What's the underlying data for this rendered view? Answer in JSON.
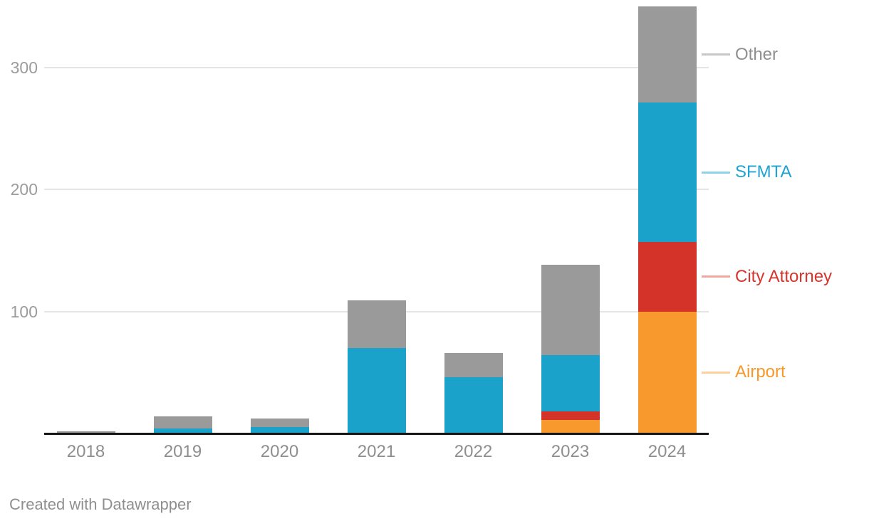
{
  "chart_data": {
    "type": "bar",
    "stacked": true,
    "title": "",
    "xlabel": "",
    "ylabel": "",
    "categories": [
      "2018",
      "2019",
      "2020",
      "2021",
      "2022",
      "2023",
      "2024"
    ],
    "series": [
      {
        "name": "Airport",
        "color": "#f8992d",
        "values": [
          0,
          0,
          0,
          0,
          0,
          11,
          100
        ]
      },
      {
        "name": "City Attorney",
        "color": "#d4332a",
        "values": [
          0,
          0,
          0,
          0,
          0,
          7,
          57
        ]
      },
      {
        "name": "SFMTA",
        "color": "#1aa2cb",
        "values": [
          0,
          4,
          5,
          70,
          46,
          46,
          114
        ]
      },
      {
        "name": "Other",
        "color": "#9a9a9a",
        "values": [
          2,
          10,
          7,
          39,
          20,
          74,
          79
        ]
      }
    ],
    "ylim": [
      0,
      350
    ],
    "yticks": [
      "100",
      "200",
      "300"
    ],
    "grid": "horizontal",
    "legend_position": "right, aligned to 2024 bar segments",
    "legend": [
      {
        "label": "Other",
        "series": "Other",
        "text_color": "#8f8f8f",
        "line_color": "#c7c7c7"
      },
      {
        "label": "SFMTA",
        "series": "SFMTA",
        "text_color": "#1fa3d2",
        "line_color": "#8fd3e9"
      },
      {
        "label": "City Attorney",
        "series": "City Attorney",
        "text_color": "#d6342c",
        "line_color": "#f0a8a3"
      },
      {
        "label": "Airport",
        "series": "Airport",
        "text_color": "#f7982b",
        "line_color": "#fcd19e"
      }
    ]
  },
  "footer": {
    "credit": "Created with Datawrapper"
  }
}
